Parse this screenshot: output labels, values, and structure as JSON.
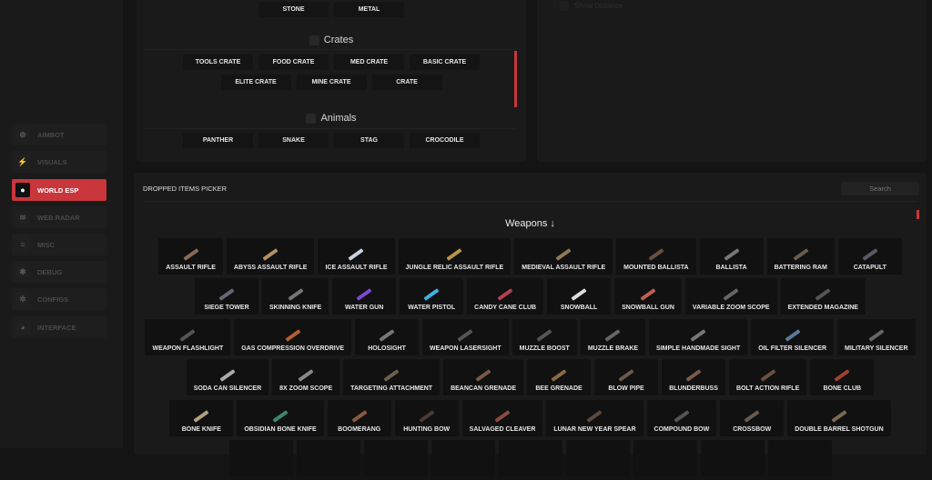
{
  "sidebar": {
    "items": [
      {
        "label": "AIMBOT",
        "icon": "crosshair-icon",
        "active": false
      },
      {
        "label": "VISUALS",
        "icon": "running-person-icon",
        "active": false
      },
      {
        "label": "WORLD ESP",
        "icon": "globe-icon",
        "active": true
      },
      {
        "label": "WEB RADAR",
        "icon": "wifi-icon",
        "active": false
      },
      {
        "label": "MISC",
        "icon": "menu-icon",
        "active": false
      },
      {
        "label": "DEBUG",
        "icon": "bug-icon",
        "active": false
      },
      {
        "label": "CONFIGS",
        "icon": "gear-icon",
        "active": false
      },
      {
        "label": "INTERFACE",
        "icon": "palette-icon",
        "active": false
      }
    ]
  },
  "esp": {
    "ores": [
      "STONE",
      "METAL"
    ],
    "crates_title": "Crates",
    "crates": [
      "TOOLS CRATE",
      "FOOD CRATE",
      "MED CRATE",
      "BASIC CRATE",
      "ELITE CRATE",
      "MINE CRATE",
      "CRATE"
    ],
    "animals_title": "Animals",
    "animals": [
      "PANTHER",
      "SNAKE",
      "STAG",
      "CROCODILE"
    ],
    "show_distance": "Show Distance"
  },
  "picker": {
    "title": "DROPPED ITEMS PICKER",
    "search_placeholder": "Search",
    "category": "Weapons ↓",
    "accent": "#c9363b",
    "rows": [
      [
        [
          "ASSAULT RIFLE",
          "#8a6a55"
        ],
        [
          "ABYSS ASSAULT RIFLE",
          "#b59060"
        ],
        [
          "ICE ASSAULT RIFLE",
          "#c8d4e0"
        ],
        [
          "JUNGLE RELIC ASSAULT RIFLE",
          "#b8944a"
        ],
        [
          "MEDIEVAL ASSAULT RIFLE",
          "#8e7a58"
        ],
        [
          "MOUNTED BALLISTA",
          "#6a5040"
        ],
        [
          "BALLISTA",
          "#777"
        ],
        [
          "BATTERING RAM",
          "#6a5a4a"
        ],
        [
          "CATAPULT",
          "#5a5a6a"
        ]
      ],
      [
        [
          "SIEGE TOWER",
          "#667"
        ],
        [
          "SKINNING KNIFE",
          "#777"
        ],
        [
          "WATER GUN",
          "#7a4ad0"
        ],
        [
          "WATER PISTOL",
          "#40b0e0"
        ],
        [
          "CANDY CANE CLUB",
          "#b04050"
        ],
        [
          "SNOWBALL",
          "#ddd"
        ],
        [
          "SNOWBALL GUN",
          "#c06050"
        ],
        [
          "VARIABLE ZOOM SCOPE",
          "#666"
        ],
        [
          "EXTENDED MAGAZINE",
          "#555"
        ]
      ],
      [
        [
          "WEAPON FLASHLIGHT",
          "#555"
        ],
        [
          "GAS COMPRESSION OVERDRIVE",
          "#b06030"
        ],
        [
          "HOLOSIGHT",
          "#777"
        ],
        [
          "WEAPON LASERSIGHT",
          "#555"
        ],
        [
          "MUZZLE BOOST",
          "#555"
        ],
        [
          "MUZZLE BRAKE",
          "#666"
        ],
        [
          "SIMPLE HANDMADE SIGHT",
          "#777"
        ],
        [
          "OIL FILTER SILENCER",
          "#5a7a9a"
        ],
        [
          "MILITARY SILENCER",
          "#666"
        ]
      ],
      [
        [
          "SODA CAN SILENCER",
          "#aaa"
        ],
        [
          "8X ZOOM SCOPE",
          "#888"
        ],
        [
          "TARGETING ATTACHMENT",
          "#6a6050"
        ],
        [
          "BEANCAN GRENADE",
          "#7a5a4a"
        ],
        [
          "BEE GRENADE",
          "#8a6a40"
        ],
        [
          "BLOW PIPE",
          "#6a5a4a"
        ],
        [
          "BLUNDERBUSS",
          "#7a5a4a"
        ],
        [
          "BOLT ACTION RIFLE",
          "#6a5040"
        ],
        [
          "BONE CLUB",
          "#a04030"
        ]
      ],
      [
        [
          "BONE KNIFE",
          "#b0a080"
        ],
        [
          "OBSIDIAN BONE KNIFE",
          "#3a8a70"
        ],
        [
          "BOOMERANG",
          "#8a5a40"
        ],
        [
          "HUNTING BOW",
          "#4a3a30"
        ],
        [
          "SALVAGED CLEAVER",
          "#8a4a40"
        ],
        [
          "LUNAR NEW YEAR SPEAR",
          "#5a4a40"
        ],
        [
          "COMPOUND BOW",
          "#555"
        ],
        [
          "CROSSBOW",
          "#6a5a4a"
        ],
        [
          "DOUBLE BARREL SHOTGUN",
          "#7a6a50"
        ]
      ]
    ]
  }
}
